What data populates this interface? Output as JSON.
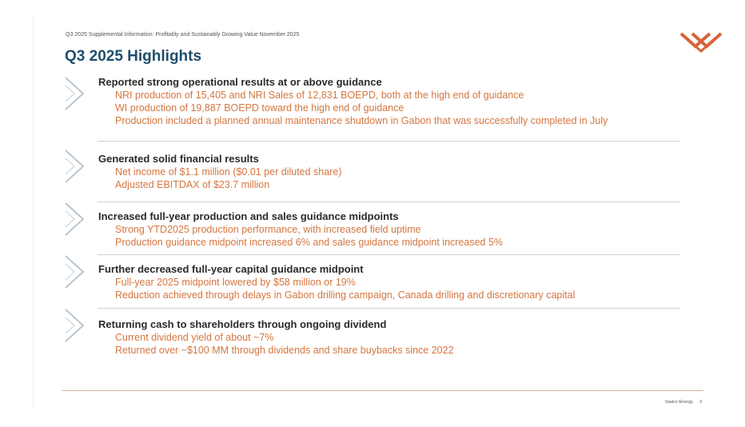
{
  "header": {
    "note": "Q3 2025 Supplemental Information: Profitably and Sustainably Growing Value November 2025",
    "title": "Q3 2025 Highlights"
  },
  "logo": {
    "icon": "chevron-stack-logo-icon",
    "color": "#d9623b"
  },
  "colors": {
    "title": "#1f4e6b",
    "accent": "#d5763f",
    "chevron": "#b9c6d0"
  },
  "sections": [
    {
      "title": "Reported strong operational results at or above guidance",
      "lines": [
        "NRI production of 15,405 and NRI Sales of 12,831 BOEPD, both at the high end of guidance",
        "WI production of 19,887 BOEPD toward the high end of guidance",
        "Production included a planned annual maintenance shutdown in Gabon that was successfully completed in July"
      ]
    },
    {
      "title": "Generated solid financial results",
      "lines": [
        "Net income of $1.1 million ($0.01 per diluted share)",
        "Adjusted EBITDAX of $23.7 million"
      ]
    },
    {
      "title": "Increased full-year production and sales guidance midpoints",
      "lines": [
        "Strong YTD2025 production performance, with increased field uptime",
        "Production guidance midpoint increased 6% and sales guidance midpoint increased 5%"
      ]
    },
    {
      "title": "Further decreased full-year capital guidance midpoint",
      "lines": [
        "Full-year 2025 midpoint lowered by $58 million or 19%",
        "Reduction achieved through delays in Gabon drilling campaign, Canada drilling and discretionary capital"
      ]
    },
    {
      "title": "Returning cash to shareholders through ongoing dividend",
      "lines": [
        "Current dividend yield of about ~7%",
        "Returned over ~$100 MM through dividends and share buybacks since 2022"
      ]
    }
  ],
  "footer": {
    "company": "Vaalco Energy",
    "page": "3"
  }
}
